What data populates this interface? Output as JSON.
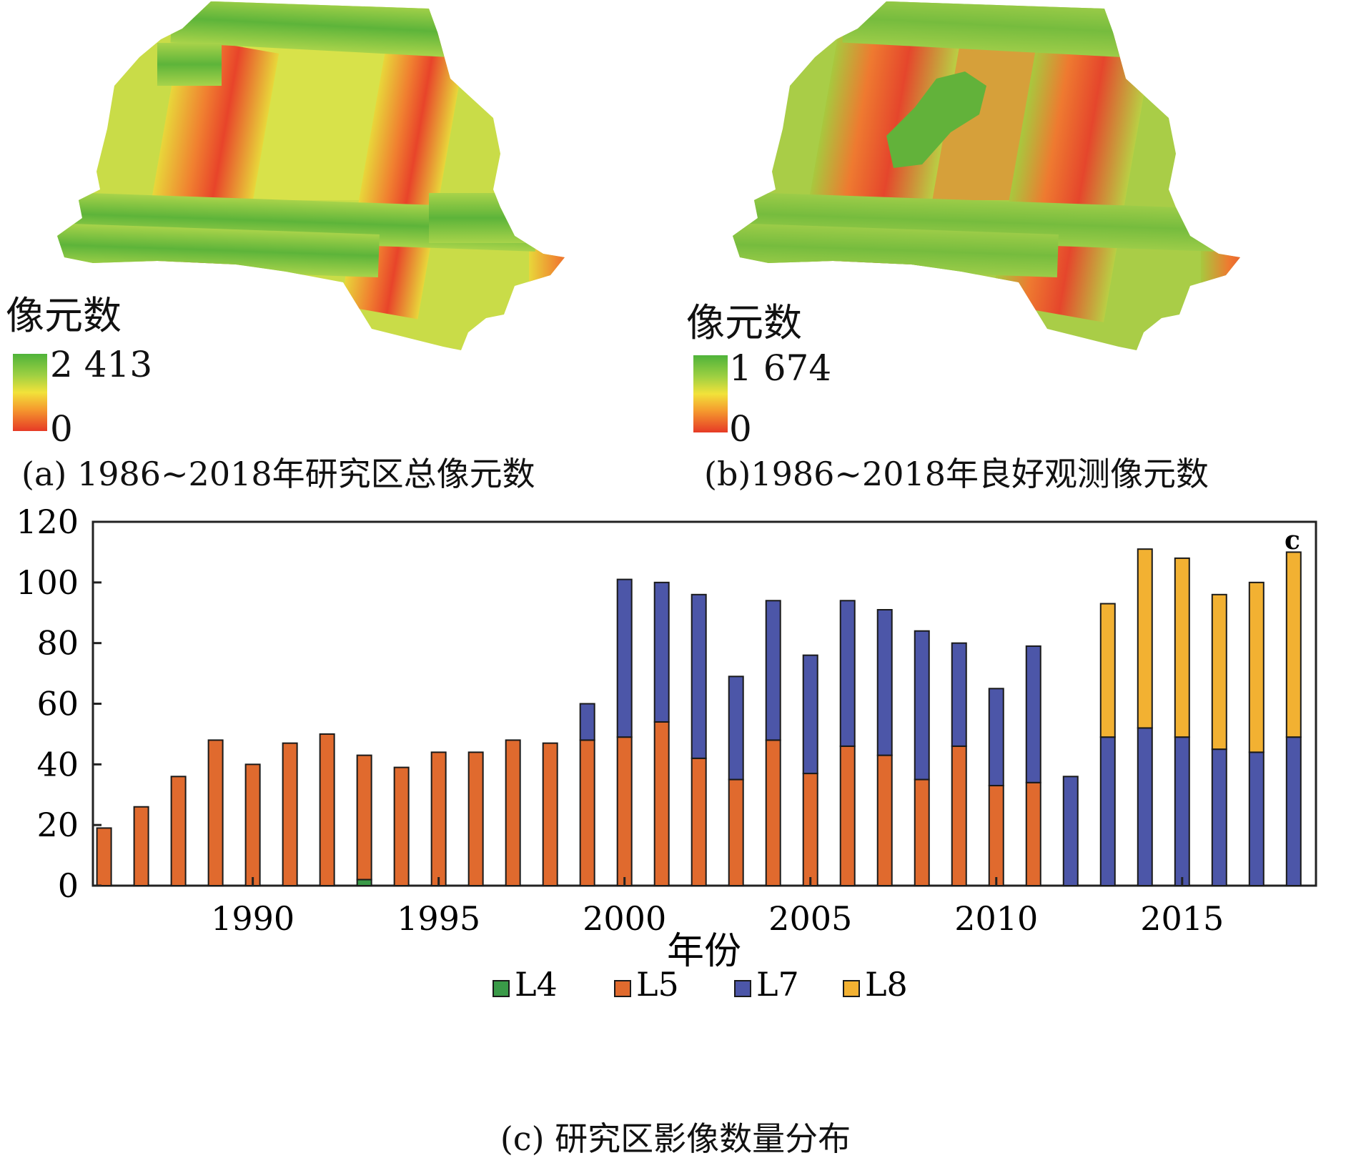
{
  "panel_a": {
    "legend_title": "像元数",
    "legend_max": "2 413",
    "legend_min": "0",
    "caption": "(a) 1986~2018年研究区总像元数"
  },
  "panel_b": {
    "legend_title": "像元数",
    "legend_max": "1 674",
    "legend_min": "0",
    "caption": "(b)1986~2018年良好观测像元数"
  },
  "panel_c": {
    "caption": "(c) 研究区影像数量分布"
  },
  "colors": {
    "L4": "#3a9a48",
    "L5": "#e06a2e",
    "L7": "#4c56a8",
    "L8": "#f2b132",
    "ramp_high": "#4fb33a",
    "ramp_mid": "#f2e23a",
    "ramp_low": "#e63a26"
  },
  "chart_data": {
    "type": "bar",
    "stacked": true,
    "panel_label": "c",
    "xlabel": "年份",
    "ylabel": "",
    "ylim": [
      0,
      120
    ],
    "yticks": [
      0,
      20,
      40,
      60,
      80,
      100,
      120
    ],
    "xticks": [
      1990,
      1995,
      2000,
      2005,
      2010,
      2015
    ],
    "grid": false,
    "legend_position": "bottom",
    "categories": [
      1986,
      1987,
      1988,
      1989,
      1990,
      1991,
      1992,
      1993,
      1994,
      1995,
      1996,
      1997,
      1998,
      1999,
      2000,
      2001,
      2002,
      2003,
      2004,
      2005,
      2006,
      2007,
      2008,
      2009,
      2010,
      2011,
      2012,
      2013,
      2014,
      2015,
      2016,
      2017,
      2018
    ],
    "series": [
      {
        "name": "L4",
        "values": [
          0,
          0,
          0,
          0,
          0,
          0,
          0,
          2,
          0,
          0,
          0,
          0,
          0,
          0,
          0,
          0,
          0,
          0,
          0,
          0,
          0,
          0,
          0,
          0,
          0,
          0,
          0,
          0,
          0,
          0,
          0,
          0,
          0
        ]
      },
      {
        "name": "L5",
        "values": [
          19,
          26,
          36,
          48,
          40,
          47,
          50,
          41,
          39,
          44,
          44,
          48,
          47,
          48,
          49,
          54,
          42,
          35,
          48,
          37,
          46,
          43,
          35,
          46,
          33,
          34,
          0,
          0,
          0,
          0,
          0,
          0,
          0
        ]
      },
      {
        "name": "L7",
        "values": [
          0,
          0,
          0,
          0,
          0,
          0,
          0,
          0,
          0,
          0,
          0,
          0,
          0,
          12,
          52,
          46,
          54,
          34,
          46,
          39,
          48,
          48,
          49,
          34,
          32,
          45,
          36,
          49,
          52,
          49,
          45,
          44,
          49
        ]
      },
      {
        "name": "L8",
        "values": [
          0,
          0,
          0,
          0,
          0,
          0,
          0,
          0,
          0,
          0,
          0,
          0,
          0,
          0,
          0,
          0,
          0,
          0,
          0,
          0,
          0,
          0,
          0,
          0,
          0,
          0,
          0,
          44,
          59,
          59,
          51,
          56,
          61
        ]
      }
    ]
  }
}
